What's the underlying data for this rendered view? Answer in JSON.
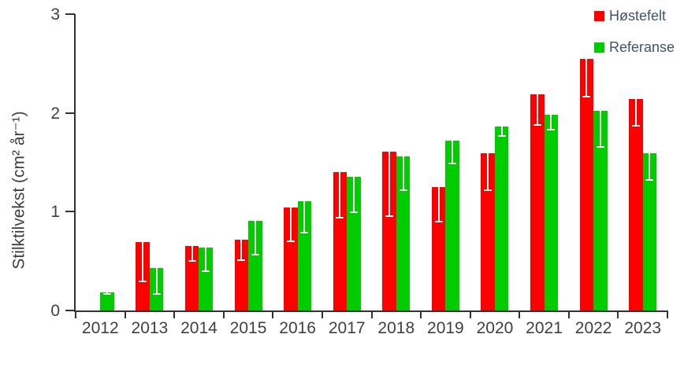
{
  "chart_data": {
    "type": "bar",
    "title": "",
    "xlabel": "",
    "ylabel": "Stilktilvekst (cm² år⁻¹)",
    "ylim": [
      0,
      3
    ],
    "yticks": [
      0,
      1,
      2,
      3
    ],
    "grid": false,
    "legend_position": "top-right",
    "error_bars": "one-sided, drawn downward from bar top in white",
    "error_bar_color": "#FFFFFF",
    "axis_color": "#333333",
    "text_color": "#404040",
    "legend_text_color": "#44546A",
    "categories": [
      "2012",
      "2013",
      "2014",
      "2015",
      "2016",
      "2017",
      "2018",
      "2019",
      "2020",
      "2021",
      "2022",
      "2023"
    ],
    "series": [
      {
        "name": "Høstefelt",
        "color": "#FF0000",
        "values": [
          null,
          0.69,
          0.65,
          0.72,
          1.04,
          1.4,
          1.61,
          1.25,
          1.59,
          2.19,
          2.55,
          2.14
        ],
        "error_low": [
          null,
          0.4,
          0.16,
          0.22,
          0.35,
          0.47,
          0.66,
          0.36,
          0.38,
          0.32,
          0.39,
          0.28
        ]
      },
      {
        "name": "Referanse",
        "color": "#00CC00",
        "values": [
          0.18,
          0.43,
          0.64,
          0.91,
          1.11,
          1.35,
          1.56,
          1.72,
          1.86,
          1.98,
          2.02,
          1.59
        ],
        "error_low": [
          0.02,
          0.27,
          0.25,
          0.35,
          0.33,
          0.36,
          0.35,
          0.24,
          0.1,
          0.16,
          0.37,
          0.28
        ]
      }
    ]
  }
}
